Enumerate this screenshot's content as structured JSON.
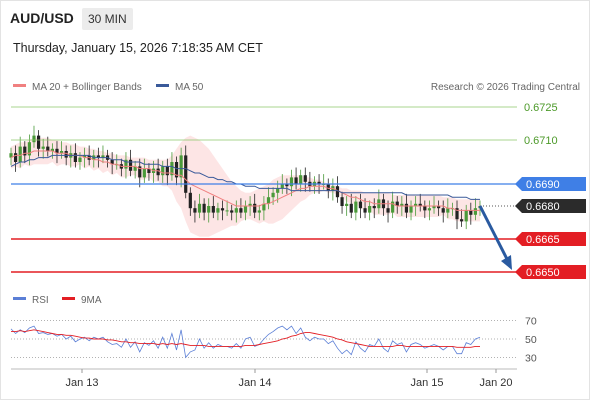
{
  "header": {
    "pair": "AUD/USD",
    "timeframe": "30 MIN",
    "datetime": "Thursday, January 15, 2026 7:18:35 AM CET"
  },
  "legend": {
    "ma20": "MA 20 + Bollinger Bands",
    "ma50": "MA 50",
    "copyright": "Research © 2026 Trading Central",
    "rsi": "RSI",
    "rsi_ma": "9MA"
  },
  "colors": {
    "resistance": "#8bc96a",
    "pivot": "#3f7fe6",
    "support": "#e31e24",
    "ma20": "#f08080",
    "ma50": "#3a5a9a",
    "band": "#fde0e0",
    "arrow": "#2a5aa0"
  },
  "chart_data": [
    {
      "type": "line",
      "title": "AUD/USD",
      "ylim": [
        0.6645,
        0.6728
      ],
      "x_ticks": [
        "Jan 13",
        "Jan 14",
        "Jan 15",
        "Jan 20"
      ],
      "levels": [
        {
          "value": 0.6725,
          "label": "0.6725",
          "kind": "resistance"
        },
        {
          "value": 0.671,
          "label": "0.6710",
          "kind": "resistance"
        },
        {
          "value": 0.669,
          "label": "0.6690",
          "kind": "pivot"
        },
        {
          "value": 0.668,
          "label": "0.6680",
          "kind": "last"
        },
        {
          "value": 0.6665,
          "label": "0.6665",
          "kind": "support"
        },
        {
          "value": 0.665,
          "label": "0.6650",
          "kind": "support"
        }
      ],
      "close": [
        0.6704,
        0.67,
        0.6707,
        0.6703,
        0.6709,
        0.6712,
        0.6706,
        0.6707,
        0.6705,
        0.6706,
        0.6704,
        0.6705,
        0.6702,
        0.6704,
        0.67,
        0.6702,
        0.6703,
        0.6701,
        0.6703,
        0.6702,
        0.6703,
        0.6701,
        0.6699,
        0.6699,
        0.6697,
        0.6701,
        0.6696,
        0.6698,
        0.6693,
        0.6697,
        0.6695,
        0.6697,
        0.6694,
        0.6698,
        0.6694,
        0.67,
        0.6693,
        0.6703,
        0.6686,
        0.6679,
        0.6677,
        0.6681,
        0.6677,
        0.668,
        0.6677,
        0.6679,
        0.6678,
        0.6678,
        0.6677,
        0.6679,
        0.6677,
        0.668,
        0.6681,
        0.6677,
        0.6678,
        0.6681,
        0.6684,
        0.6686,
        0.6688,
        0.669,
        0.6689,
        0.6693,
        0.669,
        0.6694,
        0.6691,
        0.6689,
        0.6691,
        0.669,
        0.669,
        0.6687,
        0.6689,
        0.6684,
        0.668,
        0.6681,
        0.6677,
        0.6682,
        0.6679,
        0.6677,
        0.668,
        0.6679,
        0.6683,
        0.6679,
        0.6677,
        0.6682,
        0.668,
        0.6681,
        0.6677,
        0.668,
        0.6681,
        0.668,
        0.6678,
        0.6679,
        0.668,
        0.6679,
        0.6677,
        0.6679,
        0.6679,
        0.6674,
        0.6673,
        0.6678,
        0.6676,
        0.6679,
        0.668
      ],
      "ma20": [
        0.6702,
        0.6703,
        0.6703,
        0.6704,
        0.6704,
        0.6705,
        0.6705,
        0.6705,
        0.6705,
        0.6705,
        0.6704,
        0.6704,
        0.6704,
        0.6703,
        0.6703,
        0.6703,
        0.6702,
        0.6702,
        0.6701,
        0.6701,
        0.67,
        0.67,
        0.6699,
        0.6699,
        0.6698,
        0.6698,
        0.6698,
        0.6698,
        0.6697,
        0.6697,
        0.6697,
        0.6696,
        0.6696,
        0.6695,
        0.6695,
        0.6695,
        0.6694,
        0.6694,
        0.6692,
        0.669,
        0.6689,
        0.6688,
        0.6687,
        0.6686,
        0.6685,
        0.6684,
        0.6683,
        0.6682,
        0.6681,
        0.668,
        0.668,
        0.668,
        0.668,
        0.668,
        0.668,
        0.6681,
        0.6681,
        0.6682,
        0.6683,
        0.6684,
        0.6685,
        0.6686,
        0.6687,
        0.6688,
        0.6688,
        0.6689,
        0.6689,
        0.6689,
        0.6689,
        0.6688,
        0.6688,
        0.6687,
        0.6686,
        0.6685,
        0.6684,
        0.6684,
        0.6683,
        0.6682,
        0.6682,
        0.6681,
        0.6681,
        0.6681,
        0.6681,
        0.6681,
        0.668,
        0.668,
        0.668,
        0.668,
        0.668,
        0.668,
        0.668,
        0.668,
        0.668,
        0.668,
        0.668,
        0.6679,
        0.6679,
        0.6678,
        0.6678,
        0.6678,
        0.6678,
        0.6678,
        0.6678
      ],
      "ma50": [
        0.6698,
        0.6699,
        0.67,
        0.67,
        0.6701,
        0.6701,
        0.6702,
        0.6702,
        0.6702,
        0.6703,
        0.6703,
        0.6703,
        0.6703,
        0.6703,
        0.6703,
        0.6703,
        0.6703,
        0.6703,
        0.6702,
        0.6702,
        0.6702,
        0.6702,
        0.6701,
        0.6701,
        0.6701,
        0.67,
        0.67,
        0.67,
        0.67,
        0.6699,
        0.6699,
        0.6699,
        0.6699,
        0.6698,
        0.6698,
        0.6698,
        0.6697,
        0.6697,
        0.6697,
        0.6696,
        0.6695,
        0.6695,
        0.6694,
        0.6693,
        0.6693,
        0.6692,
        0.6692,
        0.6691,
        0.6691,
        0.669,
        0.669,
        0.6689,
        0.6689,
        0.6689,
        0.6688,
        0.6688,
        0.6688,
        0.6688,
        0.6688,
        0.6688,
        0.6688,
        0.6687,
        0.6687,
        0.6687,
        0.6687,
        0.6687,
        0.6687,
        0.6687,
        0.6687,
        0.6687,
        0.6687,
        0.6687,
        0.6686,
        0.6686,
        0.6686,
        0.6686,
        0.6686,
        0.6686,
        0.6686,
        0.6686,
        0.6686,
        0.6686,
        0.6686,
        0.6686,
        0.6686,
        0.6686,
        0.6685,
        0.6685,
        0.6685,
        0.6685,
        0.6685,
        0.6685,
        0.6685,
        0.6685,
        0.6685,
        0.6685,
        0.6684,
        0.6684,
        0.6684,
        0.6684,
        0.6683,
        0.6683,
        0.6683
      ],
      "band_upper": [
        0.6707,
        0.6708,
        0.6709,
        0.6709,
        0.671,
        0.6711,
        0.6711,
        0.6711,
        0.6711,
        0.671,
        0.671,
        0.6709,
        0.6709,
        0.6708,
        0.6708,
        0.6707,
        0.6707,
        0.6706,
        0.6706,
        0.6705,
        0.6705,
        0.6704,
        0.6704,
        0.6703,
        0.6703,
        0.6703,
        0.6702,
        0.6702,
        0.6702,
        0.6702,
        0.6701,
        0.6701,
        0.6701,
        0.6701,
        0.6701,
        0.6703,
        0.6706,
        0.6709,
        0.6711,
        0.6712,
        0.6711,
        0.671,
        0.6708,
        0.6706,
        0.6703,
        0.67,
        0.6697,
        0.6694,
        0.6691,
        0.6689,
        0.6687,
        0.6686,
        0.6686,
        0.6687,
        0.6688,
        0.6689,
        0.669,
        0.6692,
        0.6693,
        0.6694,
        0.6694,
        0.6694,
        0.6694,
        0.6694,
        0.6693,
        0.6693,
        0.6692,
        0.6692,
        0.6691,
        0.669,
        0.669,
        0.6689,
        0.6688,
        0.6688,
        0.6687,
        0.6687,
        0.6687,
        0.6686,
        0.6686,
        0.6686,
        0.6686,
        0.6686,
        0.6686,
        0.6685,
        0.6685,
        0.6685,
        0.6685,
        0.6685,
        0.6685,
        0.6685,
        0.6685,
        0.6685,
        0.6685,
        0.6685,
        0.6684,
        0.6684,
        0.6684,
        0.6683,
        0.6683,
        0.6683,
        0.6683,
        0.6683,
        0.6683
      ],
      "band_lower": [
        0.6697,
        0.6698,
        0.6697,
        0.6699,
        0.6698,
        0.6699,
        0.6699,
        0.6699,
        0.6699,
        0.67,
        0.6698,
        0.6699,
        0.6699,
        0.6698,
        0.6698,
        0.6699,
        0.6697,
        0.6698,
        0.6696,
        0.6697,
        0.6695,
        0.6696,
        0.6694,
        0.6695,
        0.6693,
        0.6693,
        0.6694,
        0.6694,
        0.6692,
        0.6692,
        0.6693,
        0.6691,
        0.6691,
        0.6689,
        0.6689,
        0.6687,
        0.6682,
        0.6679,
        0.6673,
        0.6668,
        0.6667,
        0.6666,
        0.6666,
        0.6666,
        0.6667,
        0.6668,
        0.6669,
        0.667,
        0.6671,
        0.6671,
        0.6673,
        0.6674,
        0.6674,
        0.6673,
        0.6672,
        0.6673,
        0.6672,
        0.6672,
        0.6673,
        0.6674,
        0.6676,
        0.6678,
        0.668,
        0.6682,
        0.6683,
        0.6685,
        0.6686,
        0.6686,
        0.6687,
        0.6686,
        0.6686,
        0.6685,
        0.6684,
        0.6682,
        0.6681,
        0.6681,
        0.6679,
        0.6678,
        0.6678,
        0.6676,
        0.6676,
        0.6676,
        0.6676,
        0.6677,
        0.6675,
        0.6675,
        0.6675,
        0.6675,
        0.6675,
        0.6675,
        0.6675,
        0.6675,
        0.6675,
        0.6675,
        0.6676,
        0.6674,
        0.6674,
        0.6673,
        0.6673,
        0.6673,
        0.6673,
        0.6673,
        0.6673
      ],
      "forecast": {
        "from": 0.668,
        "to": 0.665
      }
    },
    {
      "type": "line",
      "title": "RSI",
      "ylim": [
        25,
        75
      ],
      "y_ticks": [
        70,
        50,
        30
      ],
      "rsi": [
        61,
        56,
        60,
        57,
        62,
        64,
        56,
        57,
        55,
        56,
        53,
        55,
        50,
        53,
        47,
        50,
        52,
        48,
        52,
        50,
        52,
        47,
        44,
        45,
        41,
        50,
        41,
        47,
        36,
        46,
        43,
        48,
        40,
        52,
        40,
        56,
        38,
        60,
        30,
        36,
        38,
        50,
        40,
        46,
        40,
        44,
        42,
        42,
        40,
        45,
        40,
        50,
        52,
        42,
        44,
        50,
        55,
        58,
        62,
        64,
        60,
        64,
        56,
        62,
        52,
        48,
        52,
        50,
        50,
        45,
        48,
        40,
        34,
        38,
        33,
        47,
        40,
        36,
        44,
        42,
        50,
        40,
        36,
        48,
        44,
        46,
        36,
        44,
        46,
        44,
        40,
        42,
        44,
        42,
        38,
        42,
        42,
        34,
        34,
        46,
        44,
        50,
        52
      ],
      "rsi_ma": [
        58,
        58,
        59,
        58,
        59,
        60,
        59,
        58,
        57,
        56,
        55,
        55,
        54,
        54,
        53,
        52,
        51,
        51,
        50,
        50,
        50,
        49,
        49,
        48,
        47,
        47,
        46,
        46,
        45,
        45,
        45,
        45,
        44,
        45,
        44,
        45,
        44,
        45,
        44,
        43,
        43,
        43,
        43,
        42,
        42,
        42,
        42,
        42,
        42,
        42,
        42,
        43,
        43,
        43,
        44,
        45,
        46,
        47,
        48,
        50,
        51,
        53,
        54,
        56,
        57,
        57,
        56,
        55,
        54,
        53,
        52,
        50,
        49,
        47,
        46,
        45,
        44,
        43,
        42,
        42,
        42,
        42,
        42,
        42,
        43,
        43,
        42,
        42,
        42,
        42,
        42,
        42,
        42,
        42,
        42,
        42,
        42,
        41,
        41,
        41,
        41,
        42,
        42
      ]
    }
  ]
}
